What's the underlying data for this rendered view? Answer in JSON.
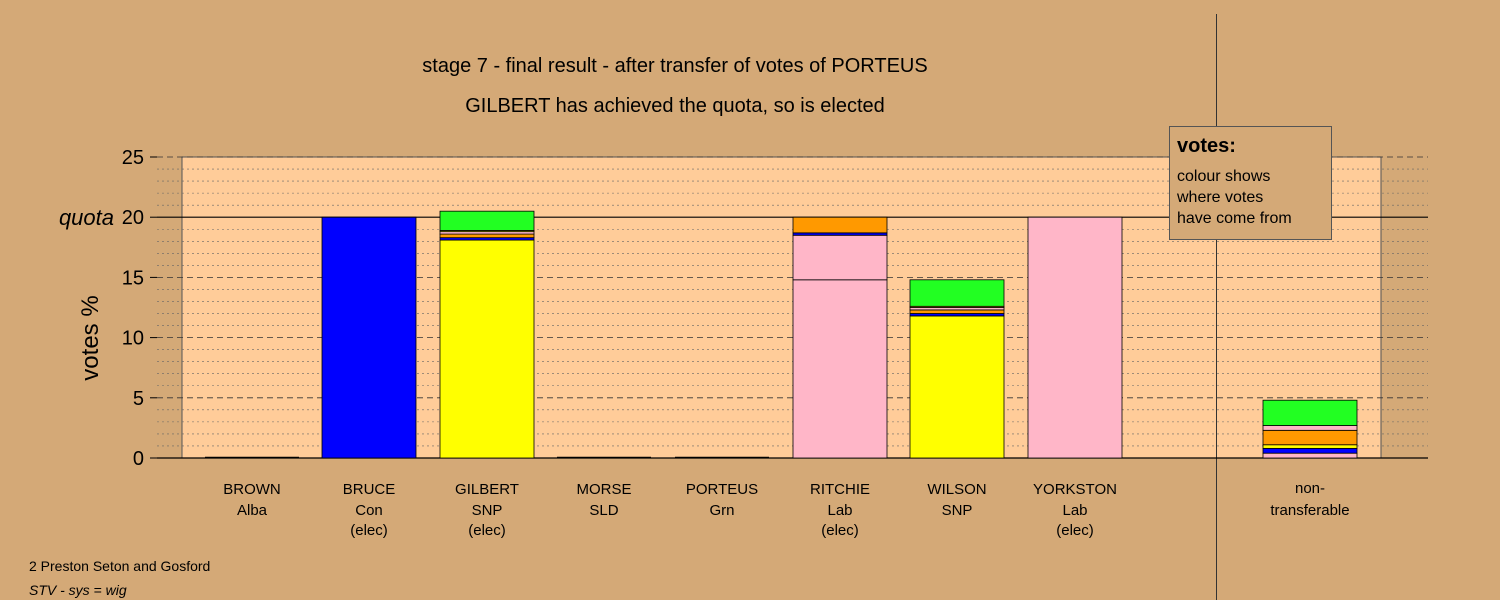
{
  "chart_data": {
    "type": "bar",
    "title": "stage 7 - final result - after transfer of votes of PORTEUS",
    "subtitle": "GILBERT has achieved the quota, so is elected",
    "ylabel": "votes %",
    "quota_label": "quota",
    "quota_value": 20,
    "ylim": [
      0,
      25
    ],
    "yticks": [
      0,
      5,
      10,
      15,
      20,
      25
    ],
    "categories": [
      {
        "name": "BROWN",
        "party": "Alba",
        "status": ""
      },
      {
        "name": "BRUCE",
        "party": "Con",
        "status": "(elec)"
      },
      {
        "name": "GILBERT",
        "party": "SNP",
        "status": "(elec)"
      },
      {
        "name": "MORSE",
        "party": "SLD",
        "status": ""
      },
      {
        "name": "PORTEUS",
        "party": "Grn",
        "status": ""
      },
      {
        "name": "RITCHIE",
        "party": "Lab",
        "status": "(elec)"
      },
      {
        "name": "WILSON",
        "party": "SNP",
        "status": ""
      },
      {
        "name": "YORKSTON",
        "party": "Lab",
        "status": "(elec)"
      }
    ],
    "nontransferable": {
      "line1": "non-",
      "line2": "transferable"
    },
    "bars": [
      {
        "candidate": "BROWN",
        "segments": []
      },
      {
        "candidate": "BRUCE",
        "segments": [
          {
            "value": 20.0,
            "color": "#0000ff"
          }
        ]
      },
      {
        "candidate": "GILBERT",
        "segments": [
          {
            "value": 18.1,
            "color": "#ffff00"
          },
          {
            "value": 0.2,
            "color": "#0000ff"
          },
          {
            "value": 0.3,
            "color": "#ff9900"
          },
          {
            "value": 0.2,
            "color": "#ffb6c8"
          },
          {
            "value": 0.1,
            "color": "#ffff00"
          },
          {
            "value": 1.6,
            "color": "#22ff22"
          }
        ]
      },
      {
        "candidate": "MORSE",
        "segments": []
      },
      {
        "candidate": "PORTEUS",
        "segments": []
      },
      {
        "candidate": "RITCHIE",
        "segments": [
          {
            "value": 14.8,
            "color": "#ffb6c8"
          },
          {
            "value": 3.7,
            "color": "#ffb6c8"
          },
          {
            "value": 0.2,
            "color": "#0000ff"
          },
          {
            "value": 1.3,
            "color": "#ff9900"
          }
        ]
      },
      {
        "candidate": "WILSON",
        "segments": [
          {
            "value": 11.8,
            "color": "#ffff00"
          },
          {
            "value": 0.2,
            "color": "#0000ff"
          },
          {
            "value": 0.3,
            "color": "#ff9900"
          },
          {
            "value": 0.2,
            "color": "#ffb6c8"
          },
          {
            "value": 0.1,
            "color": "#ffff00"
          },
          {
            "value": 2.2,
            "color": "#22ff22"
          }
        ]
      },
      {
        "candidate": "YORKSTON",
        "segments": [
          {
            "value": 20.0,
            "color": "#ffb6c8"
          }
        ]
      },
      {
        "candidate": "non-transferable",
        "segments": [
          {
            "value": 0.4,
            "color": "#ffb6c8"
          },
          {
            "value": 0.4,
            "color": "#0000ff"
          },
          {
            "value": 0.3,
            "color": "#ffff00"
          },
          {
            "value": 1.2,
            "color": "#ff9900"
          },
          {
            "value": 0.4,
            "color": "#ffb6c8"
          },
          {
            "value": 2.1,
            "color": "#22ff22"
          }
        ]
      }
    ],
    "grid": true,
    "legend_position": "top-right"
  },
  "legend": {
    "title": "votes:",
    "lines": [
      "colour shows",
      "where votes",
      "have come from"
    ]
  },
  "footer": {
    "constituency": "2 Preston Seton and Gosford",
    "system": "STV - sys = wig"
  },
  "colors": {
    "background": "#d4a977",
    "plot_panel": "#ffcc99"
  }
}
